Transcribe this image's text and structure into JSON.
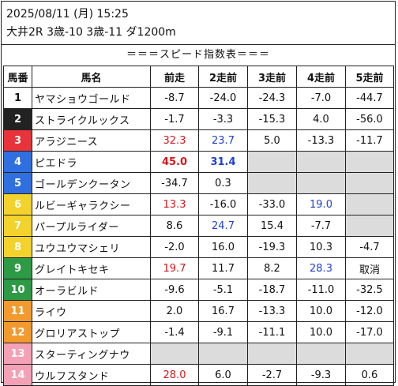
{
  "header": {
    "date": "2025/08/11 (月) 15:25",
    "race": "大井2R 3歳-10 3歳-11 ダ1200m"
  },
  "title": "＝＝＝スピード指数表＝＝＝",
  "columns": [
    "馬番",
    "馬名",
    "前走",
    "2走前",
    "3走前",
    "4走前",
    "5走前"
  ],
  "colors": {
    "gate": [
      "#ffffff",
      "#222222",
      "#e8333a",
      "#2f6fe0",
      "#f2d22b",
      "#2d9a45",
      "#f29a2e",
      "#f4a1b6"
    ],
    "gate_text": [
      "#111111",
      "#ffffff",
      "#ffffff",
      "#ffffff",
      "#ffffff",
      "#ffffff",
      "#ffffff",
      "#ffffff"
    ],
    "value_red": "#d9161b",
    "value_blue": "#1f3fd6",
    "empty_cell": "#dcdcdc"
  },
  "rows": [
    {
      "no": "1",
      "gate": 0,
      "name": "ヤマショウゴールド",
      "values": [
        {
          "v": "-8.7"
        },
        {
          "v": "-24.0"
        },
        {
          "v": "-24.3"
        },
        {
          "v": "-7.0"
        },
        {
          "v": "-44.7"
        }
      ]
    },
    {
      "no": "2",
      "gate": 1,
      "name": "ストライクルックス",
      "values": [
        {
          "v": "-1.7"
        },
        {
          "v": "-3.3"
        },
        {
          "v": "-15.3"
        },
        {
          "v": "4.0"
        },
        {
          "v": "-56.0"
        }
      ]
    },
    {
      "no": "3",
      "gate": 2,
      "name": "アラジニース",
      "values": [
        {
          "v": "32.3",
          "c": "red"
        },
        {
          "v": "23.7",
          "c": "blue"
        },
        {
          "v": "5.0"
        },
        {
          "v": "-13.3"
        },
        {
          "v": "-11.7"
        }
      ]
    },
    {
      "no": "4",
      "gate": 3,
      "name": "ピエドラ",
      "values": [
        {
          "v": "45.0",
          "c": "red",
          "b": true
        },
        {
          "v": "31.4",
          "c": "blue",
          "b": true
        },
        {
          "v": ""
        },
        {
          "v": ""
        },
        {
          "v": ""
        }
      ]
    },
    {
      "no": "5",
      "gate": 3,
      "name": "ゴールデンクータン",
      "values": [
        {
          "v": "-34.7"
        },
        {
          "v": "0.3"
        },
        {
          "v": ""
        },
        {
          "v": ""
        },
        {
          "v": ""
        }
      ]
    },
    {
      "no": "6",
      "gate": 4,
      "name": "ルビーギャラクシー",
      "values": [
        {
          "v": "13.3",
          "c": "red"
        },
        {
          "v": "-16.0"
        },
        {
          "v": "-33.0"
        },
        {
          "v": "19.0",
          "c": "blue"
        },
        {
          "v": ""
        }
      ]
    },
    {
      "no": "7",
      "gate": 4,
      "name": "パープルライダー",
      "values": [
        {
          "v": "8.6"
        },
        {
          "v": "24.7",
          "c": "blue"
        },
        {
          "v": "15.4"
        },
        {
          "v": "-7.7"
        },
        {
          "v": ""
        }
      ]
    },
    {
      "no": "8",
      "gate": 4,
      "name": "ユウユウマシェリ",
      "values": [
        {
          "v": "-2.0"
        },
        {
          "v": "16.0"
        },
        {
          "v": "-19.3"
        },
        {
          "v": "10.3"
        },
        {
          "v": "-4.7"
        }
      ]
    },
    {
      "no": "9",
      "gate": 5,
      "name": "グレイトキセキ",
      "values": [
        {
          "v": "19.7",
          "c": "red"
        },
        {
          "v": "11.7"
        },
        {
          "v": "8.2"
        },
        {
          "v": "28.3",
          "c": "blue"
        },
        {
          "v": "取消"
        }
      ]
    },
    {
      "no": "10",
      "gate": 5,
      "name": "オーラビルド",
      "values": [
        {
          "v": "-9.6"
        },
        {
          "v": "-5.1"
        },
        {
          "v": "-18.7"
        },
        {
          "v": "-11.0"
        },
        {
          "v": "-32.5"
        }
      ]
    },
    {
      "no": "11",
      "gate": 6,
      "name": "ライウ",
      "values": [
        {
          "v": "2.0"
        },
        {
          "v": "16.7"
        },
        {
          "v": "-13.3"
        },
        {
          "v": "10.0"
        },
        {
          "v": "-12.0"
        }
      ]
    },
    {
      "no": "12",
      "gate": 6,
      "name": "グロリアストップ",
      "values": [
        {
          "v": "-1.4"
        },
        {
          "v": "-9.1"
        },
        {
          "v": "-11.1"
        },
        {
          "v": "10.0"
        },
        {
          "v": "-17.0"
        }
      ]
    },
    {
      "no": "13",
      "gate": 7,
      "name": "スターティングナウ",
      "values": [
        {
          "v": ""
        },
        {
          "v": ""
        },
        {
          "v": ""
        },
        {
          "v": ""
        },
        {
          "v": ""
        }
      ]
    },
    {
      "no": "14",
      "gate": 7,
      "name": "ウルフスタンド",
      "values": [
        {
          "v": "28.0",
          "c": "red"
        },
        {
          "v": "6.0"
        },
        {
          "v": "-2.7"
        },
        {
          "v": "-9.3"
        },
        {
          "v": "0.6"
        }
      ]
    }
  ]
}
